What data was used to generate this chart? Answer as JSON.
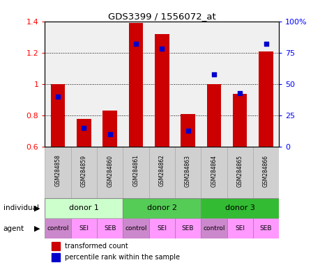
{
  "title": "GDS3399 / 1556072_at",
  "samples": [
    "GSM284858",
    "GSM284859",
    "GSM284860",
    "GSM284861",
    "GSM284862",
    "GSM284863",
    "GSM284864",
    "GSM284865",
    "GSM284866"
  ],
  "transformed_count": [
    1.0,
    0.78,
    0.83,
    1.39,
    1.32,
    0.81,
    1.0,
    0.94,
    1.21
  ],
  "percentile_rank": [
    40,
    15,
    10,
    82,
    78,
    13,
    58,
    43,
    82
  ],
  "ylim": [
    0.6,
    1.4
  ],
  "yticks": [
    0.6,
    0.8,
    1.0,
    1.2,
    1.4
  ],
  "ytick_labels": [
    "0.6",
    "0.8",
    "1",
    "1.2",
    "1.4"
  ],
  "right_yticks": [
    0,
    25,
    50,
    75,
    100
  ],
  "right_ytick_labels": [
    "0",
    "25",
    "50",
    "75",
    "100%"
  ],
  "grid_lines": [
    0.8,
    1.0,
    1.2
  ],
  "bar_color": "#cc0000",
  "dot_color": "#0000cc",
  "plot_bg": "#f0f0f0",
  "sample_bg": "#d0d0d0",
  "indiv_groups": [
    {
      "start": 0,
      "end": 2,
      "label": "donor 1",
      "color": "#ccffcc"
    },
    {
      "start": 3,
      "end": 5,
      "label": "donor 2",
      "color": "#55cc55"
    },
    {
      "start": 6,
      "end": 8,
      "label": "donor 3",
      "color": "#33bb33"
    }
  ],
  "agent_labels": [
    "control",
    "SEI",
    "SEB",
    "control",
    "SEI",
    "SEB",
    "control",
    "SEI",
    "SEB"
  ],
  "agent_color_map": {
    "control": "#cc88cc",
    "SEI": "#ff99ff",
    "SEB": "#ff99ff"
  },
  "legend_items": [
    "transformed count",
    "percentile rank within the sample"
  ],
  "legend_colors": [
    "#cc0000",
    "#0000cc"
  ],
  "left_labels": [
    {
      "text": "individual",
      "row": "indiv"
    },
    {
      "text": "agent",
      "row": "agent"
    }
  ]
}
